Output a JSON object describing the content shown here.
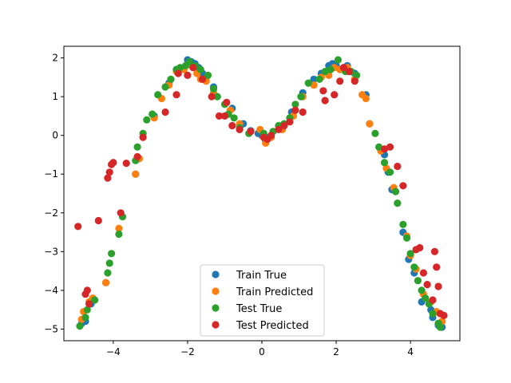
{
  "chart_data": {
    "type": "scatter",
    "xlim": [
      -5.33,
      5.33
    ],
    "ylim": [
      -5.3,
      2.3
    ],
    "x_ticks": [
      -4,
      -2,
      0,
      2,
      4
    ],
    "y_ticks": [
      -5,
      -4,
      -3,
      -2,
      -1,
      0,
      1,
      2
    ],
    "x_tick_labels": [
      "−4",
      "−2",
      "0",
      "2",
      "4"
    ],
    "y_tick_labels": [
      "−5",
      "−4",
      "−3",
      "−2",
      "−1",
      "0",
      "1",
      "2"
    ],
    "grid": false,
    "legend_position": "bottom-center",
    "series": [
      {
        "name": "Train True",
        "color": "#1f77b4",
        "points": [
          [
            -4.85,
            -4.85
          ],
          [
            -4.75,
            -4.8
          ],
          [
            -4.6,
            -4.35
          ],
          [
            -4.2,
            -3.8
          ],
          [
            -3.4,
            -1.0
          ],
          [
            -2.9,
            0.5
          ],
          [
            -2.5,
            1.35
          ],
          [
            -2.3,
            1.7
          ],
          [
            -2.0,
            1.95
          ],
          [
            -1.9,
            1.9
          ],
          [
            -1.8,
            1.85
          ],
          [
            -1.7,
            1.75
          ],
          [
            -1.6,
            1.6
          ],
          [
            -1.5,
            1.5
          ],
          [
            -1.3,
            1.25
          ],
          [
            -0.8,
            0.7
          ],
          [
            -0.5,
            0.3
          ],
          [
            -0.3,
            0.12
          ],
          [
            -0.1,
            0.05
          ],
          [
            0.0,
            0.0
          ],
          [
            0.1,
            -0.15
          ],
          [
            0.2,
            -0.05
          ],
          [
            0.5,
            0.2
          ],
          [
            0.8,
            0.6
          ],
          [
            1.1,
            1.1
          ],
          [
            1.4,
            1.45
          ],
          [
            1.6,
            1.6
          ],
          [
            1.8,
            1.8
          ],
          [
            1.9,
            1.85
          ],
          [
            2.0,
            1.8
          ],
          [
            2.2,
            1.75
          ],
          [
            2.3,
            1.8
          ],
          [
            2.5,
            1.6
          ],
          [
            2.8,
            1.05
          ],
          [
            2.9,
            0.3
          ],
          [
            3.3,
            -0.5
          ],
          [
            3.4,
            -0.95
          ],
          [
            3.5,
            -1.4
          ],
          [
            3.8,
            -2.5
          ],
          [
            3.95,
            -3.2
          ],
          [
            4.1,
            -3.55
          ],
          [
            4.3,
            -4.3
          ],
          [
            4.55,
            -4.5
          ],
          [
            4.6,
            -4.7
          ],
          [
            4.75,
            -4.9
          ],
          [
            4.85,
            -4.95
          ]
        ]
      },
      {
        "name": "Train Predicted",
        "color": "#ff7f0e",
        "points": [
          [
            -4.85,
            -4.75
          ],
          [
            -4.8,
            -4.55
          ],
          [
            -4.65,
            -4.3
          ],
          [
            -4.55,
            -4.2
          ],
          [
            -4.2,
            -3.8
          ],
          [
            -3.85,
            -2.4
          ],
          [
            -3.4,
            -1.0
          ],
          [
            -3.3,
            -0.6
          ],
          [
            -2.9,
            0.45
          ],
          [
            -2.7,
            0.95
          ],
          [
            -2.5,
            1.3
          ],
          [
            -2.3,
            1.65
          ],
          [
            -2.1,
            1.7
          ],
          [
            -1.9,
            1.8
          ],
          [
            -1.75,
            1.6
          ],
          [
            -1.65,
            1.45
          ],
          [
            -1.5,
            1.4
          ],
          [
            -1.3,
            1.1
          ],
          [
            -0.85,
            0.65
          ],
          [
            -0.6,
            0.3
          ],
          [
            -0.3,
            0.1
          ],
          [
            -0.05,
            0.15
          ],
          [
            0.1,
            -0.2
          ],
          [
            0.25,
            -0.05
          ],
          [
            0.55,
            0.15
          ],
          [
            0.85,
            0.5
          ],
          [
            1.1,
            1.0
          ],
          [
            1.4,
            1.3
          ],
          [
            1.6,
            1.5
          ],
          [
            1.8,
            1.55
          ],
          [
            1.95,
            1.75
          ],
          [
            2.1,
            1.7
          ],
          [
            2.3,
            1.75
          ],
          [
            2.5,
            1.45
          ],
          [
            2.7,
            1.05
          ],
          [
            2.8,
            0.95
          ],
          [
            2.9,
            0.3
          ],
          [
            3.2,
            -0.4
          ],
          [
            3.35,
            -0.85
          ],
          [
            3.55,
            -1.35
          ],
          [
            3.9,
            -2.6
          ],
          [
            4.0,
            -3.1
          ],
          [
            4.15,
            -3.45
          ],
          [
            4.35,
            -4.1
          ],
          [
            4.55,
            -4.3
          ],
          [
            4.7,
            -4.55
          ],
          [
            4.85,
            -4.8
          ]
        ]
      },
      {
        "name": "Test True",
        "color": "#2ca02c",
        "points": [
          [
            -4.9,
            -4.92
          ],
          [
            -4.75,
            -4.7
          ],
          [
            -4.7,
            -4.5
          ],
          [
            -4.5,
            -4.25
          ],
          [
            -4.15,
            -3.55
          ],
          [
            -4.1,
            -3.3
          ],
          [
            -4.05,
            -3.05
          ],
          [
            -3.85,
            -2.55
          ],
          [
            -3.75,
            -2.1
          ],
          [
            -3.4,
            -0.65
          ],
          [
            -3.35,
            -0.3
          ],
          [
            -3.2,
            0.05
          ],
          [
            -3.1,
            0.4
          ],
          [
            -2.95,
            0.55
          ],
          [
            -2.8,
            1.05
          ],
          [
            -2.6,
            1.25
          ],
          [
            -2.45,
            1.45
          ],
          [
            -2.3,
            1.7
          ],
          [
            -2.2,
            1.75
          ],
          [
            -2.05,
            1.8
          ],
          [
            -1.95,
            1.9
          ],
          [
            -1.8,
            1.8
          ],
          [
            -1.65,
            1.7
          ],
          [
            -1.45,
            1.55
          ],
          [
            -1.3,
            1.2
          ],
          [
            -1.2,
            1.0
          ],
          [
            -1.0,
            0.8
          ],
          [
            -0.9,
            0.55
          ],
          [
            -0.75,
            0.45
          ],
          [
            -0.6,
            0.2
          ],
          [
            -0.35,
            0.05
          ],
          [
            0.05,
            0.05
          ],
          [
            0.3,
            0.1
          ],
          [
            0.45,
            0.25
          ],
          [
            0.6,
            0.3
          ],
          [
            0.75,
            0.45
          ],
          [
            0.9,
            0.8
          ],
          [
            1.05,
            1.0
          ],
          [
            1.25,
            1.35
          ],
          [
            1.55,
            1.45
          ],
          [
            1.7,
            1.65
          ],
          [
            1.85,
            1.7
          ],
          [
            2.05,
            1.95
          ],
          [
            2.25,
            1.65
          ],
          [
            2.4,
            1.65
          ],
          [
            2.55,
            1.55
          ],
          [
            3.05,
            0.05
          ],
          [
            3.15,
            -0.3
          ],
          [
            3.3,
            -0.7
          ],
          [
            3.45,
            -0.95
          ],
          [
            3.6,
            -1.45
          ],
          [
            3.65,
            -1.75
          ],
          [
            3.8,
            -2.3
          ],
          [
            3.9,
            -2.65
          ],
          [
            4.0,
            -3.05
          ],
          [
            4.1,
            -3.4
          ],
          [
            4.2,
            -3.75
          ],
          [
            4.3,
            -4.0
          ],
          [
            4.4,
            -4.2
          ],
          [
            4.5,
            -4.35
          ],
          [
            4.6,
            -4.6
          ],
          [
            4.75,
            -4.85
          ],
          [
            4.8,
            -4.95
          ]
        ]
      },
      {
        "name": "Test Predicted",
        "color": "#d62728",
        "points": [
          [
            -4.95,
            -2.35
          ],
          [
            -4.75,
            -4.1
          ],
          [
            -4.7,
            -4.0
          ],
          [
            -4.65,
            -4.35
          ],
          [
            -4.4,
            -2.2
          ],
          [
            -4.15,
            -1.1
          ],
          [
            -4.1,
            -0.95
          ],
          [
            -4.05,
            -0.75
          ],
          [
            -4.0,
            -0.7
          ],
          [
            -3.8,
            -2.0
          ],
          [
            -3.65,
            -0.72
          ],
          [
            -3.35,
            -0.55
          ],
          [
            -3.2,
            -0.05
          ],
          [
            -2.6,
            0.6
          ],
          [
            -2.3,
            1.05
          ],
          [
            -2.25,
            1.6
          ],
          [
            -2.0,
            1.55
          ],
          [
            -1.85,
            1.75
          ],
          [
            -1.6,
            1.45
          ],
          [
            -1.35,
            1.0
          ],
          [
            -1.15,
            0.5
          ],
          [
            -1.0,
            0.5
          ],
          [
            -0.95,
            0.85
          ],
          [
            -0.8,
            0.25
          ],
          [
            -0.6,
            0.15
          ],
          [
            -0.3,
            0.1
          ],
          [
            0.05,
            -0.05
          ],
          [
            0.15,
            -0.1
          ],
          [
            0.25,
            0.0
          ],
          [
            0.45,
            0.15
          ],
          [
            0.6,
            0.25
          ],
          [
            0.75,
            0.35
          ],
          [
            0.9,
            0.65
          ],
          [
            1.1,
            0.6
          ],
          [
            1.65,
            1.15
          ],
          [
            1.7,
            0.9
          ],
          [
            1.95,
            1.05
          ],
          [
            2.1,
            1.4
          ],
          [
            2.2,
            1.75
          ],
          [
            2.35,
            1.65
          ],
          [
            2.5,
            1.4
          ],
          [
            3.3,
            -0.35
          ],
          [
            3.45,
            -0.3
          ],
          [
            3.65,
            -0.8
          ],
          [
            3.8,
            -1.3
          ],
          [
            4.15,
            -2.95
          ],
          [
            4.25,
            -2.9
          ],
          [
            4.35,
            -3.55
          ],
          [
            4.45,
            -3.85
          ],
          [
            4.6,
            -4.25
          ],
          [
            4.65,
            -3.0
          ],
          [
            4.7,
            -3.4
          ],
          [
            4.75,
            -3.9
          ],
          [
            4.8,
            -4.6
          ],
          [
            4.9,
            -4.65
          ]
        ]
      }
    ]
  }
}
